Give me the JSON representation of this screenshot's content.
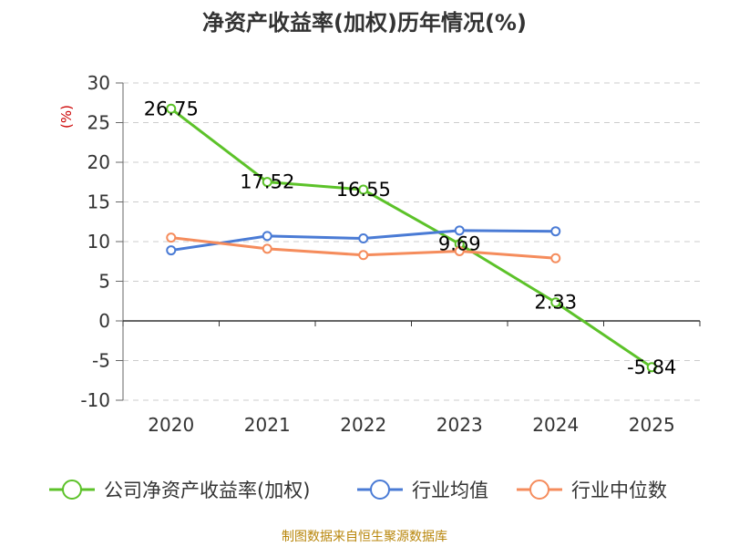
{
  "chart_data": {
    "type": "line",
    "title": "净资产收益率(加权)历年情况(%)",
    "unit_label": "(%)",
    "categories": [
      "2020",
      "2021",
      "2022",
      "2023",
      "2024",
      "2025"
    ],
    "ylim": [
      -10,
      30
    ],
    "yticks": [
      30,
      25,
      20,
      15,
      10,
      5,
      0,
      -5,
      -10
    ],
    "ytick_labels": [
      "30",
      "25",
      "20",
      "15",
      "10",
      "5",
      "0",
      "-5",
      "-10"
    ],
    "grid": true,
    "series": [
      {
        "name": "公司净资产收益率(加权)",
        "color": "#5cc229",
        "values": [
          26.75,
          17.52,
          16.55,
          9.69,
          2.33,
          -5.84
        ],
        "labels": [
          "26.75",
          "17.52",
          "16.55",
          "9.69",
          "2.33",
          "-5.84"
        ]
      },
      {
        "name": "行业均值",
        "color": "#4a7bd5",
        "values": [
          8.9,
          10.7,
          10.4,
          11.4,
          11.3,
          null
        ]
      },
      {
        "name": "行业中位数",
        "color": "#f58c5c",
        "values": [
          10.5,
          9.1,
          8.3,
          8.8,
          7.9,
          null
        ]
      }
    ],
    "source": "制图数据来自恒生聚源数据库"
  }
}
